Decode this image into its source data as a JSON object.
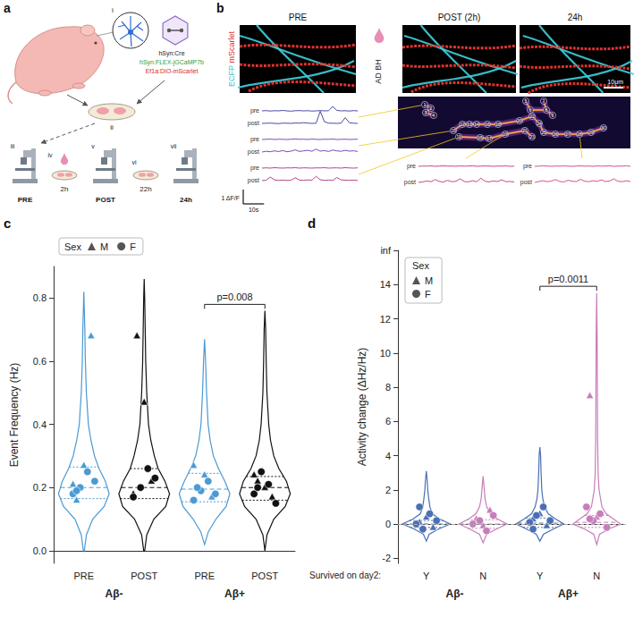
{
  "panels": {
    "a": {
      "letter": "a",
      "steps": [
        "i",
        "ii",
        "iii",
        "iv",
        "v",
        "vi",
        "vii"
      ],
      "constructs": [
        {
          "text": "hSyn:Cre",
          "color": "#222222"
        },
        {
          "text": "hSyn:FLEX-jGCaMP7b",
          "color": "#2e9e3a"
        },
        {
          "text": "Ef1a:DIO-mScarlet",
          "color": "#d22b2b"
        }
      ],
      "stage_labels": [
        "PRE",
        "POST",
        "24h"
      ],
      "durations": [
        "2h",
        "22h"
      ]
    },
    "b": {
      "letter": "b",
      "image_titles": [
        "PRE",
        "POST (2h)",
        "24h"
      ],
      "channels": [
        {
          "text": "ECFP",
          "color": "#2fc0d0"
        },
        {
          "text": "mScarlet",
          "color": "#e0332f"
        }
      ],
      "treatment": "AD BH",
      "image_scale_bar": "10μm",
      "roi_labels": [
        "1",
        "2",
        "3",
        "4",
        "5",
        "6",
        "7",
        "8",
        "9",
        "10",
        "11",
        "12",
        "13",
        "14",
        "15",
        "16",
        "17",
        "18",
        "19",
        "20",
        "21",
        "22",
        "23",
        "24",
        "25",
        "26",
        "27",
        "28",
        "29",
        "30"
      ],
      "trace_labels": [
        "pre",
        "post"
      ],
      "sample_interval_s": 2,
      "scale_bar": {
        "dff": 1,
        "dff_label": "1 ΔF/F",
        "time": 10,
        "time_label": "10s"
      },
      "traces": [
        {
          "color": "#35359a",
          "pre": [
            0,
            0.02,
            -0.01,
            0.01,
            0,
            0.03,
            0,
            -0.02,
            0.01,
            0.02,
            0,
            0.01,
            -0.01,
            0,
            0.02,
            0,
            0.01,
            0.3,
            0.04,
            0,
            0.01,
            -0.01,
            0.02,
            0
          ],
          "post": [
            0,
            0.01,
            0.02,
            0,
            -0.01,
            0.02,
            0.01,
            0,
            0.03,
            0.01,
            0.05,
            0.02,
            0,
            0.01,
            0.85,
            0.12,
            0.02,
            0.01,
            0,
            0.02,
            0.4,
            0.05,
            0.01,
            0
          ]
        },
        {
          "color": "#6a3aa8",
          "pre": [
            0,
            0.01,
            0.03,
            0,
            0.02,
            0.01,
            0,
            0.02,
            0.04,
            0.01,
            0.02,
            0,
            0.03,
            0.01,
            0,
            0.02,
            0.01,
            0.03,
            0,
            0.01,
            0.02,
            0,
            0.01,
            0.02
          ],
          "post": [
            0,
            0.05,
            0.02,
            0.08,
            0.03,
            0.1,
            0.02,
            0.06,
            0.15,
            0.04,
            0.08,
            0.12,
            0.05,
            0.2,
            0.06,
            0.1,
            0.04,
            0.14,
            0.08,
            0.05,
            0.12,
            0.06,
            0.09,
            0.04
          ]
        },
        {
          "color": "#a8327e",
          "pre": [
            0,
            0.02,
            0,
            0.03,
            0.01,
            0,
            0.02,
            0.01,
            0.03,
            0,
            0.02,
            0.01,
            0,
            0.02,
            0.01,
            0.03,
            0,
            0.01,
            0.02,
            0,
            0.03,
            0.01,
            0,
            0.02
          ],
          "post": [
            0,
            0.03,
            0.25,
            0.05,
            0.02,
            0.04,
            0.01,
            0.03,
            0.2,
            0.04,
            0.02,
            0.05,
            0.03,
            0.3,
            0.06,
            0.02,
            0.04,
            0.01,
            0.22,
            0.05,
            0.03,
            0.02,
            0.04,
            0.01
          ]
        },
        {
          "color": "#c2307a",
          "pre": [
            0,
            0.02,
            0.01,
            0.03,
            0,
            0.02,
            0.04,
            0.01,
            0.02,
            0,
            0.03,
            0.01,
            0.02,
            0.04,
            0,
            0.01,
            0.03,
            0.02,
            0,
            0.02,
            0.01,
            0.03,
            0,
            0.01
          ],
          "post": [
            0,
            0.04,
            0.1,
            0.05,
            0.2,
            0.06,
            0.03,
            0.15,
            0.05,
            0.08,
            0.25,
            0.06,
            0.04,
            0.12,
            0.05,
            0.3,
            0.08,
            0.04,
            0.1,
            0.06,
            0.18,
            0.05,
            0.07,
            0.03
          ]
        },
        {
          "color": "#d23a86",
          "pre": [
            0,
            0.01,
            0.03,
            0.02,
            0,
            0.02,
            0.01,
            0.03,
            0.01,
            0,
            0.02,
            0.04,
            0.01,
            0.02,
            0,
            0.03,
            0.01,
            0.02,
            0.04,
            0,
            0.01,
            0.02,
            0.03,
            0
          ],
          "post": [
            0,
            0.06,
            0.12,
            0.05,
            0.1,
            0.2,
            0.07,
            0.04,
            0.15,
            0.08,
            0.06,
            0.22,
            0.09,
            0.05,
            0.12,
            0.07,
            0.18,
            0.06,
            0.1,
            0.25,
            0.08,
            0.05,
            0.11,
            0.06
          ]
        }
      ]
    }
  },
  "chart_data": [
    {
      "type": "violin",
      "panel_label": "c",
      "y_label": "Event Frequency (Hz)",
      "categories": [
        "PRE",
        "POST",
        "PRE",
        "POST"
      ],
      "groups": [
        "Aβ-",
        "Aβ+"
      ],
      "colors": [
        "#4a9ad4",
        "#111111",
        "#4a9ad4",
        "#111111"
      ],
      "ylim": [
        -0.04,
        0.9
      ],
      "yticks": [
        {
          "value": 0,
          "label": "0.0"
        },
        0.2,
        0.4,
        0.6,
        0.8
      ],
      "grid": false,
      "legend": "top",
      "legend_title": "Sex",
      "legend_items": [
        {
          "name": "M",
          "marker": "triangle"
        },
        {
          "name": "F",
          "marker": "circle"
        }
      ],
      "violins": [
        {
          "y": [
            0.0,
            0.05,
            0.1,
            0.14,
            0.18,
            0.22,
            0.26,
            0.3,
            0.35,
            0.4,
            0.5,
            0.6,
            0.7,
            0.82
          ],
          "width": [
            0.02,
            0.1,
            0.35,
            0.8,
            1.0,
            0.85,
            0.6,
            0.42,
            0.28,
            0.18,
            0.1,
            0.06,
            0.04,
            0.0
          ],
          "quartiles": [
            0.165,
            0.2,
            0.265
          ],
          "points": {
            "M": [
              0.16,
              0.27,
              0.68,
              0.21
            ],
            "F": [
              0.18,
              0.2,
              0.25,
              0.22,
              0.19
            ]
          }
        },
        {
          "y": [
            0.0,
            0.05,
            0.1,
            0.14,
            0.18,
            0.22,
            0.26,
            0.3,
            0.35,
            0.4,
            0.5,
            0.6,
            0.7,
            0.8,
            0.86
          ],
          "width": [
            0.02,
            0.1,
            0.38,
            0.85,
            1.0,
            0.82,
            0.55,
            0.4,
            0.26,
            0.17,
            0.1,
            0.06,
            0.04,
            0.02,
            0.0
          ],
          "quartiles": [
            0.165,
            0.2,
            0.26
          ],
          "points": {
            "M": [
              0.68,
              0.47,
              0.22,
              0.18
            ],
            "F": [
              0.17,
              0.2,
              0.26,
              0.23
            ]
          }
        },
        {
          "y": [
            0.02,
            0.06,
            0.1,
            0.14,
            0.18,
            0.22,
            0.26,
            0.3,
            0.35,
            0.4,
            0.5,
            0.6,
            0.67
          ],
          "width": [
            0.0,
            0.15,
            0.45,
            0.85,
            1.0,
            0.8,
            0.55,
            0.35,
            0.22,
            0.14,
            0.08,
            0.04,
            0.0
          ],
          "quartiles": [
            0.155,
            0.195,
            0.245
          ],
          "points": {
            "M": [
              0.2,
              0.24,
              0.17,
              0.27
            ],
            "F": [
              0.16,
              0.19,
              0.22,
              0.18,
              0.2
            ]
          }
        },
        {
          "y": [
            0.0,
            0.05,
            0.1,
            0.14,
            0.18,
            0.22,
            0.26,
            0.3,
            0.35,
            0.4,
            0.5,
            0.6,
            0.7,
            0.76
          ],
          "width": [
            0.0,
            0.08,
            0.35,
            0.8,
            1.0,
            0.85,
            0.55,
            0.35,
            0.22,
            0.15,
            0.08,
            0.05,
            0.03,
            0.0
          ],
          "quartiles": [
            0.16,
            0.2,
            0.235
          ],
          "points": {
            "M": [
              0.22,
              0.2,
              0.17,
              0.24
            ],
            "F": [
              0.18,
              0.25,
              0.21,
              0.15,
              0.2
            ]
          }
        }
      ],
      "annotations": [
        {
          "text": "p=0.008",
          "between": [
            2,
            3
          ],
          "y": 0.78
        }
      ]
    },
    {
      "type": "violin",
      "panel_label": "d",
      "y_label": "Activity change (ΔHz/Hz)",
      "x_label": "Survived on day2:",
      "categories": [
        "Y",
        "N",
        "Y",
        "N"
      ],
      "groups": [
        "Aβ-",
        "Aβ+"
      ],
      "colors": [
        "#4a6fb5",
        "#c77dbb",
        "#4a6fb5",
        "#c77dbb"
      ],
      "ylim": [
        -2.3,
        16
      ],
      "yticks": [
        -2,
        0,
        2,
        4,
        6,
        8,
        10,
        12,
        14,
        {
          "value": 16,
          "label": "inf"
        }
      ],
      "baseline": 0,
      "grid": false,
      "legend": "top-left",
      "legend_title": "Sex",
      "legend_items": [
        {
          "name": "M",
          "marker": "triangle"
        },
        {
          "name": "F",
          "marker": "circle"
        }
      ],
      "violins": [
        {
          "y": [
            -1.0,
            -0.6,
            -0.3,
            0,
            0.3,
            0.6,
            1.0,
            1.5,
            2.0,
            2.5,
            3.1
          ],
          "width": [
            0,
            0.12,
            0.5,
            1.0,
            0.55,
            0.25,
            0.15,
            0.1,
            0.06,
            0.04,
            0
          ],
          "quartiles": [
            -0.2,
            0.0,
            0.2
          ],
          "points": {
            "M": [
              0.1,
              0.4,
              -0.2
            ],
            "F": [
              0.0,
              -0.3,
              0.6,
              0.2,
              1.0
            ]
          }
        },
        {
          "y": [
            -1.1,
            -0.6,
            -0.3,
            0,
            0.3,
            0.6,
            1.0,
            1.5,
            2.0,
            2.8
          ],
          "width": [
            0,
            0.15,
            0.55,
            1.0,
            0.6,
            0.3,
            0.15,
            0.08,
            0.05,
            0
          ],
          "quartiles": [
            -0.25,
            0.0,
            0.25
          ],
          "points": {
            "M": [
              0.3,
              -0.1,
              0.8
            ],
            "F": [
              0.0,
              0.2,
              -0.4,
              0.5
            ]
          }
        },
        {
          "y": [
            -1.0,
            -0.6,
            -0.3,
            0,
            0.3,
            0.6,
            1.0,
            1.5,
            2.0,
            3.0,
            4.0,
            4.5
          ],
          "width": [
            0,
            0.15,
            0.55,
            1.0,
            0.65,
            0.35,
            0.2,
            0.12,
            0.08,
            0.05,
            0.03,
            0
          ],
          "quartiles": [
            -0.2,
            0.05,
            0.35
          ],
          "points": {
            "M": [
              0.3,
              0.6,
              -0.1
            ],
            "F": [
              0.1,
              0.5,
              1.0,
              0.2,
              -0.3
            ]
          }
        },
        {
          "y": [
            -1.2,
            -0.6,
            -0.3,
            0,
            0.3,
            0.6,
            1.0,
            2.0,
            3.0,
            5.0,
            8.0,
            11.0,
            13.5
          ],
          "width": [
            0,
            0.12,
            0.5,
            1.0,
            0.7,
            0.4,
            0.22,
            0.1,
            0.06,
            0.04,
            0.03,
            0.02,
            0
          ],
          "quartiles": [
            -0.2,
            0.1,
            0.5
          ],
          "points": {
            "M": [
              7.5,
              0.4
            ],
            "F": [
              1.0,
              0.2,
              0.6,
              -0.2,
              0.3
            ]
          }
        }
      ],
      "annotations": [
        {
          "text": "p=0.0011",
          "between": [
            2,
            3
          ],
          "y": 13.9
        }
      ]
    }
  ]
}
